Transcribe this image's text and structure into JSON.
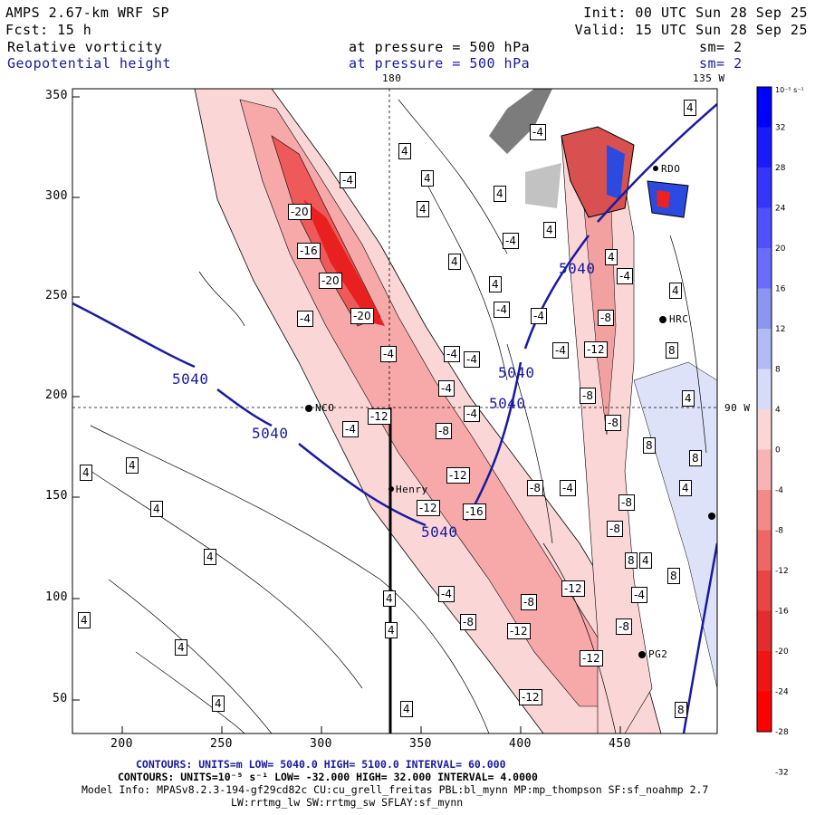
{
  "header": {
    "model": "AMPS 2.67-km WRF SP",
    "init": "Init: 00 UTC Sun 28 Sep 25",
    "fcst": "Fcst:  15 h",
    "valid": "Valid: 15 UTC Sun 28 Sep 25",
    "field1": "Relative vorticity",
    "field1_level": "at pressure =  500 hPa",
    "field1_sm": "sm= 2",
    "field2": "Geopotential height",
    "field2_level": "at pressure =  500 hPa",
    "field2_sm": "sm= 2"
  },
  "map": {
    "lon_label_top_1": "180",
    "lon_label_top_2": "135 W",
    "lon_label_right": "90 W",
    "x_ticks": [
      "200",
      "250",
      "300",
      "350",
      "400",
      "450"
    ],
    "y_ticks": [
      "350",
      "300",
      "250",
      "200",
      "150",
      "100",
      "50"
    ],
    "height_label": "5040",
    "vort_labels": [
      "4",
      "-4",
      "-8",
      "-12",
      "-16",
      "-20",
      "8"
    ],
    "stations": [
      "NCO",
      "Henry",
      "HRC",
      "PG2",
      "RDO"
    ]
  },
  "colorbar": {
    "unit": "10⁻⁵ s⁻¹",
    "ticks": [
      "32",
      "28",
      "24",
      "20",
      "16",
      "12",
      "8",
      "4",
      "0",
      "-4",
      "-8",
      "-12",
      "-16",
      "-20",
      "-24",
      "-28",
      "-32"
    ],
    "colors": {
      "pos_strong": "#0000ff",
      "pos_weak": "#d6dcf8",
      "neg_weak": "#fbd6d6",
      "neg_strong": "#ff0000"
    }
  },
  "footer": {
    "line1": "CONTOURS: UNITS=m  LOW=  5040.0        HIGH=  5100.0       INTERVAL=   60.000",
    "line2": "CONTOURS: UNITS=10⁻⁵ s⁻¹  LOW=  -32.000         HIGH=  32.000        INTERVAL=   4.0000",
    "line3": "Model Info: MPASv8.2.3-194-gf29cd82c CU:cu_grell_freitas PBL:bl_mynn MP:mp_thompson SF:sf_noahmp 2.7",
    "line4": "LW:rrtmg_lw SW:rrtmg_sw SFLAY:sf_mynn"
  }
}
